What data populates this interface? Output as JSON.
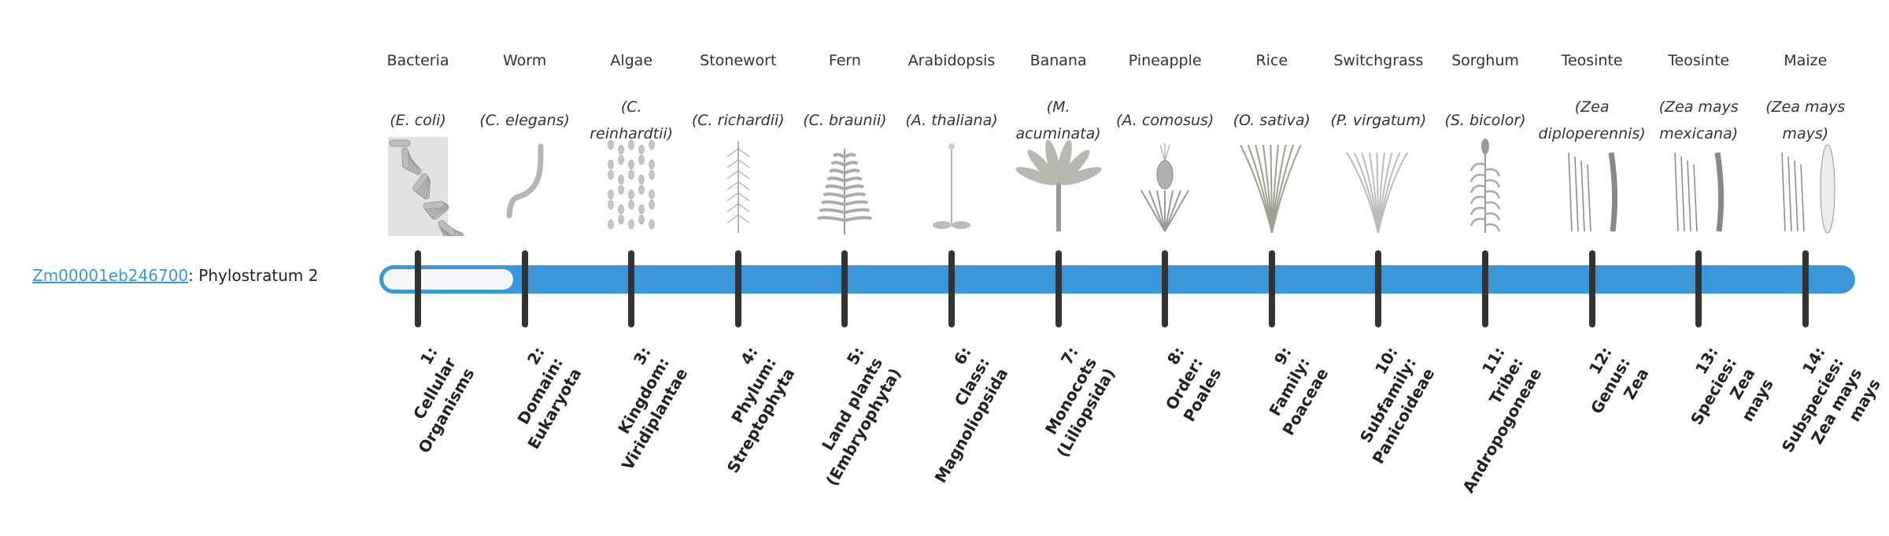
{
  "gene": {
    "id": "Zm00001eb246700",
    "separator": ": ",
    "stratum_label": "Phylostratum 2",
    "phylostratum": 2,
    "total_strata": 14
  },
  "colors": {
    "bar": "#3a97d9",
    "fill": "#f6f6f6",
    "tick": "#333333",
    "link": "#3a97d9"
  },
  "columns": [
    {
      "common": "Bacteria",
      "scientific": "(E. coli)",
      "icon": "bacteria",
      "rank": [
        "1:",
        "Cellular",
        "Organisms"
      ]
    },
    {
      "common": "Worm",
      "scientific": "(C. elegans)",
      "icon": "worm",
      "rank": [
        "2:",
        "Domain:",
        "Eukaryota"
      ]
    },
    {
      "common": "Algae",
      "scientific": "(C. reinhardtii)",
      "icon": "algae",
      "rank": [
        "3:",
        "Kingdom:",
        "Viridiplantae"
      ]
    },
    {
      "common": "Stonewort",
      "scientific": "(C. richardii)",
      "icon": "stonewort",
      "rank": [
        "4:",
        "Phylum:",
        "Streptophyta"
      ]
    },
    {
      "common": "Fern",
      "scientific": "(C. braunii)",
      "icon": "fern",
      "rank": [
        "5:",
        "Land plants",
        "(Embryophyta)"
      ]
    },
    {
      "common": "Arabidopsis",
      "scientific": "(A. thaliana)",
      "icon": "arabidopsis",
      "rank": [
        "6:",
        "Class:",
        "Magnoliopsida"
      ]
    },
    {
      "common": "Banana",
      "scientific": "(M. acuminata)",
      "icon": "banana",
      "rank": [
        "7:",
        "Monocots",
        "(Liliopsida)"
      ]
    },
    {
      "common": "Pineapple",
      "scientific": "(A. comosus)",
      "icon": "pineapple",
      "rank": [
        "8:",
        "Order:",
        "Poales"
      ]
    },
    {
      "common": "Rice",
      "scientific": "(O. sativa)",
      "icon": "rice",
      "rank": [
        "9:",
        "Family:",
        "Poaceae"
      ]
    },
    {
      "common": "Switchgrass",
      "scientific": "(P. virgatum)",
      "icon": "switchgrass",
      "rank": [
        "10:",
        "Subfamily:",
        "Panicoideae"
      ]
    },
    {
      "common": "Sorghum",
      "scientific": "(S. bicolor)",
      "icon": "sorghum",
      "rank": [
        "11:",
        "Tribe:",
        "Andropogoneae"
      ]
    },
    {
      "common": "Teosinte",
      "scientific": "(Zea diploperennis)",
      "icon": "teosinte",
      "rank": [
        "12:",
        "Genus:",
        "Zea"
      ]
    },
    {
      "common": "Teosinte",
      "scientific": "(Zea mays mexicana)",
      "icon": "teosinte",
      "rank": [
        "13:",
        "Species:",
        "Zea",
        "mays"
      ]
    },
    {
      "common": "Maize",
      "scientific": "(Zea mays mays)",
      "icon": "maize",
      "rank": [
        "14:",
        "Subspecies:",
        "Zea mays",
        "mays"
      ]
    }
  ]
}
